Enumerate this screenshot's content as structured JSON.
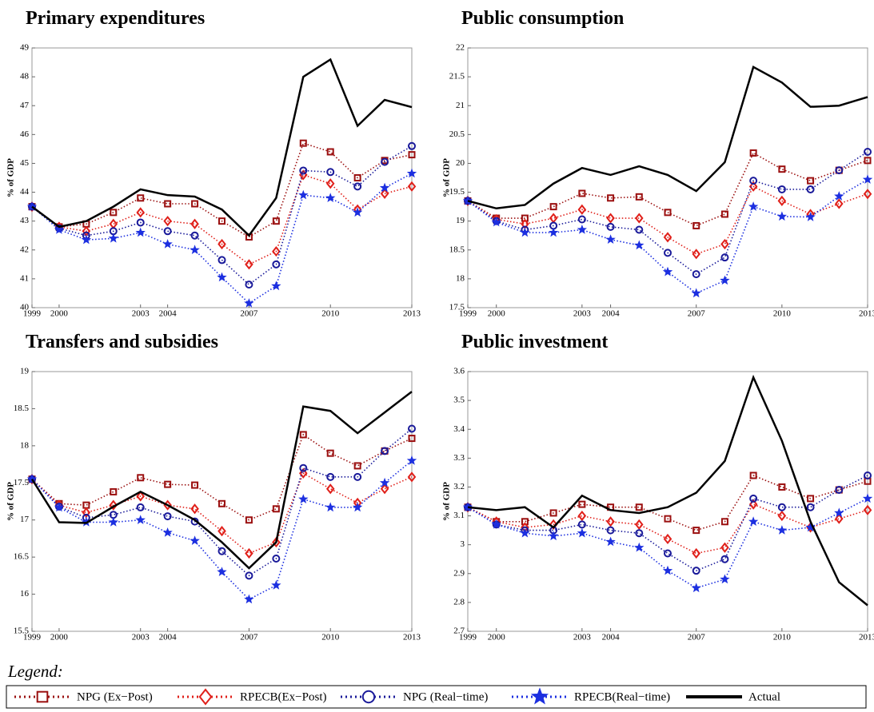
{
  "chart_data": [
    {
      "type": "line",
      "title": "Primary expenditures",
      "ylabel": "% of GDP",
      "x": [
        1999,
        2000,
        2001,
        2002,
        2003,
        2004,
        2005,
        2006,
        2007,
        2008,
        2009,
        2010,
        2011,
        2012,
        2013
      ],
      "xlim": [
        1999,
        2013
      ],
      "xticks": [
        1999,
        2000,
        2003,
        2004,
        2007,
        2010,
        2013
      ],
      "ylim": [
        40,
        49
      ],
      "yticks": [
        40,
        41,
        42,
        43,
        44,
        45,
        46,
        47,
        48,
        49
      ],
      "series": [
        {
          "name": "NPG (Ex−Post)",
          "color": "#9b1010",
          "marker": "square",
          "dash": "dotted",
          "values": [
            43.5,
            42.8,
            42.9,
            43.3,
            43.8,
            43.6,
            43.6,
            43.0,
            42.45,
            43.0,
            45.7,
            45.4,
            44.5,
            45.1,
            45.3
          ]
        },
        {
          "name": "RPECB(Ex−Post)",
          "color": "#e0201a",
          "marker": "diamond",
          "dash": "dotted",
          "values": [
            43.5,
            42.8,
            42.65,
            42.9,
            43.3,
            43.0,
            42.9,
            42.2,
            41.5,
            41.95,
            44.6,
            44.3,
            43.4,
            43.95,
            44.2
          ]
        },
        {
          "name": "NPG (Real−time)",
          "color": "#1a1a9a",
          "marker": "circle",
          "dash": "dotted",
          "values": [
            43.5,
            42.75,
            42.5,
            42.65,
            42.95,
            42.65,
            42.5,
            41.65,
            40.8,
            41.5,
            44.75,
            44.7,
            44.2,
            45.05,
            45.6
          ]
        },
        {
          "name": "RPECB(Real−time)",
          "color": "#1c2fe0",
          "marker": "star",
          "dash": "dotted",
          "values": [
            43.5,
            42.7,
            42.35,
            42.4,
            42.6,
            42.2,
            42.0,
            41.05,
            40.15,
            40.75,
            43.9,
            43.8,
            43.3,
            44.15,
            44.65
          ]
        },
        {
          "name": "Actual",
          "color": "#000000",
          "marker": "none",
          "dash": "solid",
          "values": [
            43.5,
            42.8,
            43.0,
            43.5,
            44.1,
            43.9,
            43.85,
            43.4,
            42.5,
            43.8,
            48.0,
            48.6,
            46.3,
            47.2,
            46.95
          ]
        }
      ]
    },
    {
      "type": "line",
      "title": "Public consumption",
      "ylabel": "% of GDP",
      "x": [
        1999,
        2000,
        2001,
        2002,
        2003,
        2004,
        2005,
        2006,
        2007,
        2008,
        2009,
        2010,
        2011,
        2012,
        2013
      ],
      "xlim": [
        1999,
        2013
      ],
      "xticks": [
        1999,
        2000,
        2003,
        2004,
        2007,
        2010,
        2013
      ],
      "ylim": [
        17.5,
        22
      ],
      "yticks": [
        17.5,
        18,
        18.5,
        19,
        19.5,
        20,
        20.5,
        21,
        21.5,
        22
      ],
      "series": [
        {
          "name": "NPG (Ex−Post)",
          "color": "#9b1010",
          "marker": "square",
          "dash": "dotted",
          "values": [
            19.35,
            19.05,
            19.05,
            19.25,
            19.48,
            19.4,
            19.42,
            19.15,
            18.92,
            19.12,
            20.18,
            19.9,
            19.7,
            19.88,
            20.05
          ]
        },
        {
          "name": "RPECB(Ex−Post)",
          "color": "#e0201a",
          "marker": "diamond",
          "dash": "dotted",
          "values": [
            19.35,
            19.03,
            18.95,
            19.05,
            19.2,
            19.05,
            19.05,
            18.72,
            18.43,
            18.6,
            19.6,
            19.35,
            19.12,
            19.3,
            19.47
          ]
        },
        {
          "name": "NPG (Real−time)",
          "color": "#1a1a9a",
          "marker": "circle",
          "dash": "dotted",
          "values": [
            19.35,
            19.0,
            18.85,
            18.92,
            19.03,
            18.9,
            18.85,
            18.45,
            18.08,
            18.37,
            19.7,
            19.55,
            19.55,
            19.88,
            20.2
          ]
        },
        {
          "name": "RPECB(Real−time)",
          "color": "#1c2fe0",
          "marker": "star",
          "dash": "dotted",
          "values": [
            19.35,
            18.98,
            18.8,
            18.8,
            18.85,
            18.68,
            18.58,
            18.12,
            17.75,
            17.97,
            19.25,
            19.08,
            19.07,
            19.43,
            19.72
          ]
        },
        {
          "name": "Actual",
          "color": "#000000",
          "marker": "none",
          "dash": "solid",
          "values": [
            19.35,
            19.22,
            19.28,
            19.65,
            19.92,
            19.8,
            19.95,
            19.8,
            19.52,
            20.02,
            21.67,
            21.4,
            20.98,
            21.0,
            21.15
          ]
        }
      ]
    },
    {
      "type": "line",
      "title": "Transfers and subsidies",
      "ylabel": "% of GDP",
      "x": [
        1999,
        2000,
        2001,
        2002,
        2003,
        2004,
        2005,
        2006,
        2007,
        2008,
        2009,
        2010,
        2011,
        2012,
        2013
      ],
      "xlim": [
        1999,
        2013
      ],
      "xticks": [
        1999,
        2000,
        2003,
        2004,
        2007,
        2010,
        2013
      ],
      "ylim": [
        15.5,
        19
      ],
      "yticks": [
        15.5,
        16,
        16.5,
        17,
        17.5,
        18,
        18.5,
        19
      ],
      "series": [
        {
          "name": "NPG (Ex−Post)",
          "color": "#9b1010",
          "marker": "square",
          "dash": "dotted",
          "values": [
            17.55,
            17.22,
            17.2,
            17.38,
            17.57,
            17.48,
            17.47,
            17.22,
            17.0,
            17.15,
            18.15,
            17.9,
            17.73,
            17.93,
            18.1
          ]
        },
        {
          "name": "RPECB(Ex−Post)",
          "color": "#e0201a",
          "marker": "diamond",
          "dash": "dotted",
          "values": [
            17.55,
            17.2,
            17.1,
            17.2,
            17.32,
            17.2,
            17.15,
            16.85,
            16.55,
            16.7,
            17.63,
            17.42,
            17.23,
            17.42,
            17.58
          ]
        },
        {
          "name": "NPG (Real−time)",
          "color": "#1a1a9a",
          "marker": "circle",
          "dash": "dotted",
          "values": [
            17.55,
            17.18,
            17.03,
            17.07,
            17.17,
            17.05,
            16.98,
            16.58,
            16.25,
            16.48,
            17.7,
            17.58,
            17.58,
            17.93,
            18.23
          ]
        },
        {
          "name": "RPECB(Real−time)",
          "color": "#1c2fe0",
          "marker": "star",
          "dash": "dotted",
          "values": [
            17.55,
            17.17,
            16.97,
            16.97,
            17.0,
            16.83,
            16.72,
            16.3,
            15.93,
            16.12,
            17.28,
            17.17,
            17.17,
            17.5,
            17.8
          ]
        },
        {
          "name": "Actual",
          "color": "#000000",
          "marker": "none",
          "dash": "solid",
          "values": [
            17.55,
            16.97,
            16.96,
            17.18,
            17.38,
            17.2,
            17.0,
            16.7,
            16.35,
            16.7,
            18.53,
            18.47,
            18.17,
            18.45,
            18.73
          ]
        }
      ]
    },
    {
      "type": "line",
      "title": "Public investment",
      "ylabel": "% of GDP",
      "x": [
        1999,
        2000,
        2001,
        2002,
        2003,
        2004,
        2005,
        2006,
        2007,
        2008,
        2009,
        2010,
        2011,
        2012,
        2013
      ],
      "xlim": [
        1999,
        2013
      ],
      "xticks": [
        1999,
        2000,
        2003,
        2004,
        2007,
        2010,
        2013
      ],
      "ylim": [
        2.7,
        3.6
      ],
      "yticks": [
        2.7,
        2.8,
        2.9,
        3,
        3.1,
        3.2,
        3.3,
        3.4,
        3.5,
        3.6
      ],
      "series": [
        {
          "name": "NPG (Ex−Post)",
          "color": "#9b1010",
          "marker": "square",
          "dash": "dotted",
          "values": [
            3.13,
            3.08,
            3.08,
            3.11,
            3.14,
            3.13,
            3.13,
            3.09,
            3.05,
            3.08,
            3.24,
            3.2,
            3.16,
            3.19,
            3.22
          ]
        },
        {
          "name": "RPECB(Ex−Post)",
          "color": "#e0201a",
          "marker": "diamond",
          "dash": "dotted",
          "values": [
            3.13,
            3.08,
            3.06,
            3.07,
            3.1,
            3.08,
            3.07,
            3.02,
            2.97,
            2.99,
            3.14,
            3.1,
            3.06,
            3.09,
            3.12
          ]
        },
        {
          "name": "NPG (Real−time)",
          "color": "#1a1a9a",
          "marker": "circle",
          "dash": "dotted",
          "values": [
            3.13,
            3.07,
            3.05,
            3.05,
            3.07,
            3.05,
            3.04,
            2.97,
            2.91,
            2.95,
            3.16,
            3.13,
            3.13,
            3.19,
            3.24
          ]
        },
        {
          "name": "RPECB(Real−time)",
          "color": "#1c2fe0",
          "marker": "star",
          "dash": "dotted",
          "values": [
            3.13,
            3.07,
            3.04,
            3.03,
            3.04,
            3.01,
            2.99,
            2.91,
            2.85,
            2.88,
            3.08,
            3.05,
            3.06,
            3.11,
            3.16
          ]
        },
        {
          "name": "Actual",
          "color": "#000000",
          "marker": "none",
          "dash": "solid",
          "values": [
            3.13,
            3.12,
            3.13,
            3.06,
            3.17,
            3.12,
            3.11,
            3.13,
            3.18,
            3.29,
            3.58,
            3.36,
            3.08,
            2.87,
            2.79
          ]
        }
      ]
    }
  ],
  "legend_title": "Legend:"
}
